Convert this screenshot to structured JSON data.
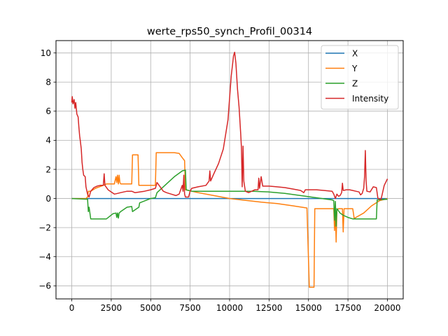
{
  "chart_data": {
    "type": "line",
    "title": "werte_rps50_synch_Profil_00314",
    "xlabel": "",
    "ylabel": "",
    "xlim": [
      -1000,
      21000
    ],
    "ylim": [
      -6.9,
      10.85
    ],
    "x_ticks": [
      0,
      2500,
      5000,
      7500,
      10000,
      12500,
      15000,
      17500,
      20000
    ],
    "x_tick_labels": [
      "0",
      "2500",
      "5000",
      "7500",
      "10000",
      "12500",
      "15000",
      "17500",
      "20000"
    ],
    "y_ticks": [
      -6,
      -4,
      -2,
      0,
      2,
      4,
      6,
      8,
      10
    ],
    "y_tick_labels": [
      "−6",
      "−4",
      "−2",
      "0",
      "2",
      "4",
      "6",
      "8",
      "10"
    ],
    "grid": true,
    "legend_position": "top-right",
    "series": [
      {
        "name": "X",
        "color": "#1f77b4",
        "points": [
          [
            0,
            0
          ],
          [
            20000,
            0
          ]
        ]
      },
      {
        "name": "Y",
        "color": "#ff7f0e",
        "points": [
          [
            0,
            0.0
          ],
          [
            900,
            0.0
          ],
          [
            1000,
            0.1
          ],
          [
            1050,
            0.5
          ],
          [
            1200,
            0.5
          ],
          [
            1500,
            0.7
          ],
          [
            2000,
            0.9
          ],
          [
            2200,
            1.0
          ],
          [
            2500,
            1.0
          ],
          [
            2700,
            1.0
          ],
          [
            2800,
            1.5
          ],
          [
            2850,
            1.1
          ],
          [
            2900,
            1.6
          ],
          [
            2950,
            1.0
          ],
          [
            3000,
            1.6
          ],
          [
            3050,
            1.1
          ],
          [
            3100,
            1.0
          ],
          [
            3500,
            1.0
          ],
          [
            3800,
            1.0
          ],
          [
            3850,
            3.0
          ],
          [
            4200,
            3.0
          ],
          [
            4250,
            0.9
          ],
          [
            5300,
            0.9
          ],
          [
            5350,
            3.15
          ],
          [
            6500,
            3.15
          ],
          [
            6800,
            3.1
          ],
          [
            7000,
            2.8
          ],
          [
            7150,
            2.6
          ],
          [
            7200,
            0.6
          ],
          [
            7600,
            0.5
          ],
          [
            8000,
            0.4
          ],
          [
            9000,
            0.2
          ],
          [
            10000,
            0.0
          ],
          [
            12000,
            -0.25
          ],
          [
            13000,
            -0.35
          ],
          [
            14000,
            -0.5
          ],
          [
            14900,
            -0.65
          ],
          [
            15050,
            -6.1
          ],
          [
            15350,
            -6.1
          ],
          [
            15400,
            -0.7
          ],
          [
            16500,
            -0.7
          ],
          [
            16600,
            -0.7
          ],
          [
            16650,
            -2.2
          ],
          [
            16700,
            -0.7
          ],
          [
            16750,
            -3.0
          ],
          [
            16800,
            -0.8
          ],
          [
            16900,
            -0.7
          ],
          [
            17150,
            -0.7
          ],
          [
            17200,
            -2.3
          ],
          [
            17250,
            -0.7
          ],
          [
            17800,
            -0.7
          ],
          [
            17900,
            -1.4
          ],
          [
            18000,
            -1.3
          ],
          [
            18500,
            -1.0
          ],
          [
            19000,
            -0.5
          ],
          [
            19500,
            -0.15
          ],
          [
            20000,
            0.0
          ]
        ]
      },
      {
        "name": "Z",
        "color": "#2ca02c",
        "points": [
          [
            0,
            0.0
          ],
          [
            1000,
            -0.05
          ],
          [
            1050,
            -0.9
          ],
          [
            1100,
            -0.6
          ],
          [
            1200,
            -1.4
          ],
          [
            2200,
            -1.4
          ],
          [
            2600,
            -1.05
          ],
          [
            2800,
            -1.0
          ],
          [
            2850,
            -1.3
          ],
          [
            2900,
            -1.0
          ],
          [
            2950,
            -1.35
          ],
          [
            3000,
            -1.0
          ],
          [
            3100,
            -0.9
          ],
          [
            3500,
            -0.6
          ],
          [
            3800,
            -0.55
          ],
          [
            3850,
            -0.9
          ],
          [
            4250,
            -0.6
          ],
          [
            4300,
            -0.3
          ],
          [
            5000,
            0.0
          ],
          [
            5300,
            0.05
          ],
          [
            5400,
            0.4
          ],
          [
            6000,
            1.0
          ],
          [
            6500,
            1.5
          ],
          [
            7000,
            1.9
          ],
          [
            7200,
            1.95
          ],
          [
            7250,
            0.6
          ],
          [
            7600,
            0.5
          ],
          [
            9000,
            0.5
          ],
          [
            10000,
            0.5
          ],
          [
            11500,
            0.5
          ],
          [
            12500,
            0.45
          ],
          [
            13500,
            0.35
          ],
          [
            14500,
            0.2
          ],
          [
            15500,
            0.05
          ],
          [
            16500,
            -0.1
          ],
          [
            16600,
            -0.15
          ],
          [
            16650,
            -1.5
          ],
          [
            16700,
            -0.2
          ],
          [
            16750,
            -1.9
          ],
          [
            16800,
            -0.7
          ],
          [
            17000,
            -1.0
          ],
          [
            17200,
            -1.15
          ],
          [
            17500,
            -1.3
          ],
          [
            17800,
            -1.4
          ],
          [
            19300,
            -1.4
          ],
          [
            19350,
            -0.1
          ],
          [
            20000,
            -0.05
          ]
        ]
      },
      {
        "name": "Intensity",
        "color": "#d62728",
        "points": [
          [
            0,
            6.6
          ],
          [
            30,
            7.0
          ],
          [
            80,
            6.5
          ],
          [
            150,
            6.8
          ],
          [
            200,
            6.2
          ],
          [
            250,
            6.6
          ],
          [
            320,
            5.8
          ],
          [
            400,
            5.6
          ],
          [
            450,
            4.9
          ],
          [
            500,
            4.3
          ],
          [
            550,
            3.9
          ],
          [
            600,
            3.4
          ],
          [
            650,
            2.5
          ],
          [
            700,
            2.0
          ],
          [
            750,
            1.6
          ],
          [
            850,
            1.5
          ],
          [
            900,
            0.8
          ],
          [
            1000,
            0.3
          ],
          [
            1100,
            0.1
          ],
          [
            1200,
            0.5
          ],
          [
            1400,
            0.75
          ],
          [
            1600,
            0.85
          ],
          [
            1800,
            0.9
          ],
          [
            2000,
            0.9
          ],
          [
            2050,
            1.7
          ],
          [
            2100,
            0.9
          ],
          [
            2300,
            0.6
          ],
          [
            2500,
            0.45
          ],
          [
            2700,
            0.3
          ],
          [
            2900,
            0.35
          ],
          [
            3100,
            0.4
          ],
          [
            3300,
            0.45
          ],
          [
            3500,
            0.5
          ],
          [
            3800,
            0.5
          ],
          [
            4000,
            0.4
          ],
          [
            4300,
            0.45
          ],
          [
            4600,
            0.5
          ],
          [
            5000,
            0.6
          ],
          [
            5300,
            0.7
          ],
          [
            5400,
            1.1
          ],
          [
            5600,
            0.8
          ],
          [
            5800,
            0.5
          ],
          [
            6000,
            0.4
          ],
          [
            6300,
            0.3
          ],
          [
            6600,
            0.2
          ],
          [
            6800,
            0.3
          ],
          [
            6900,
            0.6
          ],
          [
            7000,
            0.9
          ],
          [
            7050,
            0.5
          ],
          [
            7100,
            1.6
          ],
          [
            7150,
            0.3
          ],
          [
            7200,
            0.1
          ],
          [
            7400,
            0.1
          ],
          [
            7500,
            0.5
          ],
          [
            7600,
            0.7
          ],
          [
            8000,
            0.8
          ],
          [
            8500,
            0.9
          ],
          [
            8700,
            1.2
          ],
          [
            8750,
            1.9
          ],
          [
            8800,
            1.2
          ],
          [
            9000,
            1.7
          ],
          [
            9300,
            2.4
          ],
          [
            9600,
            3.4
          ],
          [
            9900,
            5.4
          ],
          [
            10100,
            8.4
          ],
          [
            10250,
            9.8
          ],
          [
            10320,
            10.05
          ],
          [
            10400,
            9.3
          ],
          [
            10500,
            7.5
          ],
          [
            10600,
            6.3
          ],
          [
            10700,
            4.5
          ],
          [
            10750,
            3.5
          ],
          [
            10800,
            0.8
          ],
          [
            10850,
            3.6
          ],
          [
            10900,
            1.2
          ],
          [
            11000,
            0.5
          ],
          [
            11200,
            0.4
          ],
          [
            11400,
            0.5
          ],
          [
            11600,
            0.6
          ],
          [
            11800,
            0.6
          ],
          [
            11850,
            1.4
          ],
          [
            11900,
            0.7
          ],
          [
            12000,
            1.5
          ],
          [
            12100,
            0.85
          ],
          [
            12500,
            0.85
          ],
          [
            13000,
            0.8
          ],
          [
            13500,
            0.75
          ],
          [
            14000,
            0.65
          ],
          [
            14500,
            0.55
          ],
          [
            14700,
            0.4
          ],
          [
            14800,
            0.6
          ],
          [
            15000,
            0.6
          ],
          [
            15500,
            0.6
          ],
          [
            16000,
            0.55
          ],
          [
            16500,
            0.5
          ],
          [
            16600,
            0.3
          ],
          [
            16700,
            0.0
          ],
          [
            16800,
            0.3
          ],
          [
            16900,
            0.15
          ],
          [
            17000,
            0.2
          ],
          [
            17100,
            0.4
          ],
          [
            17150,
            1.05
          ],
          [
            17200,
            0.55
          ],
          [
            17400,
            0.6
          ],
          [
            17600,
            0.6
          ],
          [
            17800,
            0.55
          ],
          [
            18000,
            0.5
          ],
          [
            18200,
            0.45
          ],
          [
            18300,
            0.25
          ],
          [
            18400,
            0.35
          ],
          [
            18500,
            0.7
          ],
          [
            18550,
            1.5
          ],
          [
            18600,
            3.3
          ],
          [
            18650,
            1.2
          ],
          [
            18700,
            0.5
          ],
          [
            18900,
            0.45
          ],
          [
            19100,
            0.8
          ],
          [
            19300,
            0.75
          ],
          [
            19400,
            0.0
          ],
          [
            19600,
            -0.05
          ],
          [
            19800,
            0.9
          ],
          [
            20000,
            1.35
          ]
        ]
      }
    ]
  }
}
